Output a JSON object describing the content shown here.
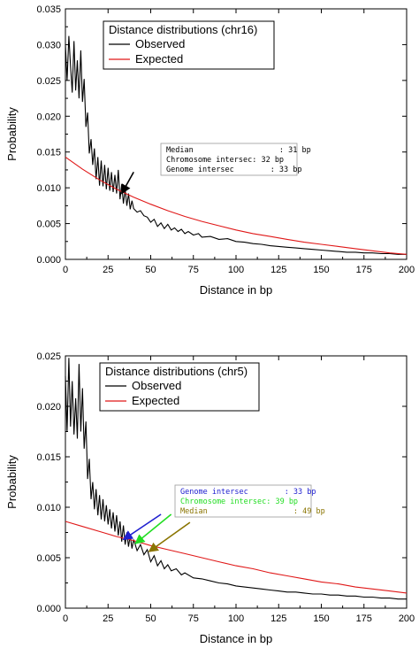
{
  "colors": {
    "observed": "#000000",
    "expected": "#e01818",
    "genome_arrow": "#2020d0",
    "chromosome_arrow": "#22dd22",
    "median_arrow": "#8a7400"
  },
  "chart_data": [
    {
      "type": "line",
      "legend_title": "Distance distributions (chr16)",
      "legend_position": "top-right",
      "xlabel": "Distance in bp",
      "ylabel": "Probability",
      "xlim": [
        0,
        200
      ],
      "ylim": [
        0,
        0.035
      ],
      "x_ticks": [
        "0",
        "25",
        "50",
        "75",
        "100",
        "125",
        "150",
        "175",
        "200"
      ],
      "y_ticks": [
        "0.000",
        "0.005",
        "0.010",
        "0.015",
        "0.020",
        "0.025",
        "0.030",
        "0.035"
      ],
      "series": [
        {
          "name": "Observed",
          "color": "#000000",
          "points": [
            [
              0,
              0.03
            ],
            [
              1,
              0.025
            ],
            [
              2,
              0.0312
            ],
            [
              3,
              0.027
            ],
            [
              4,
              0.0233
            ],
            [
              5,
              0.0305
            ],
            [
              6,
              0.0236
            ],
            [
              7,
              0.0278
            ],
            [
              8,
              0.0225
            ],
            [
              9,
              0.0292
            ],
            [
              10,
              0.022
            ],
            [
              11,
              0.0252
            ],
            [
              12,
              0.0185
            ],
            [
              13,
              0.0205
            ],
            [
              14,
              0.0148
            ],
            [
              15,
              0.0168
            ],
            [
              16,
              0.0132
            ],
            [
              17,
              0.0155
            ],
            [
              18,
              0.0112
            ],
            [
              19,
              0.0143
            ],
            [
              20,
              0.0103
            ],
            [
              21,
              0.0138
            ],
            [
              22,
              0.0102
            ],
            [
              23,
              0.0132
            ],
            [
              24,
              0.0098
            ],
            [
              25,
              0.0128
            ],
            [
              26,
              0.0096
            ],
            [
              27,
              0.0122
            ],
            [
              28,
              0.0094
            ],
            [
              29,
              0.0118
            ],
            [
              30,
              0.0092
            ],
            [
              31,
              0.0125
            ],
            [
              32,
              0.0084
            ],
            [
              33,
              0.0105
            ],
            [
              34,
              0.0078
            ],
            [
              35,
              0.0098
            ],
            [
              36,
              0.0075
            ],
            [
              37,
              0.0092
            ],
            [
              38,
              0.007
            ],
            [
              39,
              0.0082
            ],
            [
              40,
              0.0071
            ],
            [
              42,
              0.0066
            ],
            [
              44,
              0.0068
            ],
            [
              46,
              0.0061
            ],
            [
              48,
              0.0059
            ],
            [
              50,
              0.0052
            ],
            [
              52,
              0.0056
            ],
            [
              54,
              0.0046
            ],
            [
              56,
              0.0051
            ],
            [
              58,
              0.0043
            ],
            [
              60,
              0.0049
            ],
            [
              62,
              0.0041
            ],
            [
              64,
              0.0044
            ],
            [
              66,
              0.0039
            ],
            [
              68,
              0.0042
            ],
            [
              70,
              0.0036
            ],
            [
              72,
              0.0039
            ],
            [
              75,
              0.0034
            ],
            [
              78,
              0.0036
            ],
            [
              80,
              0.0031
            ],
            [
              85,
              0.0032
            ],
            [
              90,
              0.0028
            ],
            [
              95,
              0.0029
            ],
            [
              100,
              0.0025
            ],
            [
              105,
              0.0024
            ],
            [
              110,
              0.0022
            ],
            [
              115,
              0.0021
            ],
            [
              120,
              0.0019
            ],
            [
              125,
              0.0018
            ],
            [
              130,
              0.0017
            ],
            [
              135,
              0.0016
            ],
            [
              140,
              0.0015
            ],
            [
              145,
              0.0014
            ],
            [
              150,
              0.0013
            ],
            [
              155,
              0.0012
            ],
            [
              160,
              0.0011
            ],
            [
              165,
              0.001
            ],
            [
              170,
              0.001
            ],
            [
              175,
              0.0009
            ],
            [
              180,
              0.0009
            ],
            [
              185,
              0.0008
            ],
            [
              190,
              0.0008
            ],
            [
              195,
              0.0007
            ],
            [
              200,
              0.0007
            ]
          ]
        },
        {
          "name": "Expected",
          "color": "#e01818",
          "points": [
            [
              0,
              0.0143
            ],
            [
              10,
              0.0126
            ],
            [
              20,
              0.0111
            ],
            [
              30,
              0.0098
            ],
            [
              40,
              0.0087
            ],
            [
              50,
              0.0077
            ],
            [
              60,
              0.0068
            ],
            [
              70,
              0.006
            ],
            [
              80,
              0.0053
            ],
            [
              90,
              0.0047
            ],
            [
              100,
              0.0041
            ],
            [
              110,
              0.0036
            ],
            [
              120,
              0.0032
            ],
            [
              130,
              0.0028
            ],
            [
              140,
              0.0024
            ],
            [
              150,
              0.0021
            ],
            [
              160,
              0.0018
            ],
            [
              170,
              0.0015
            ],
            [
              180,
              0.0012
            ],
            [
              190,
              0.0009
            ],
            [
              200,
              0.0007
            ]
          ]
        }
      ],
      "annotation": {
        "lines": [
          {
            "text": "Median                   : 31 bp",
            "color": "#000000"
          },
          {
            "text": "Chromosome intersec: 32 bp",
            "color": "#000000"
          },
          {
            "text": "Genome intersec        : 33 bp",
            "color": "#000000"
          }
        ],
        "arrows": [
          {
            "from": [
              40,
              0.0122
            ],
            "to": [
              33,
              0.0092
            ],
            "color": "#000000"
          }
        ]
      }
    },
    {
      "type": "line",
      "legend_title": "Distance distributions (chr5)",
      "legend_position": "top-left",
      "xlabel": "Distance in bp",
      "ylabel": "Probability",
      "xlim": [
        0,
        200
      ],
      "ylim": [
        0,
        0.025
      ],
      "x_ticks": [
        "0",
        "25",
        "50",
        "75",
        "100",
        "125",
        "150",
        "175",
        "200"
      ],
      "y_ticks": [
        "0.000",
        "0.005",
        "0.010",
        "0.015",
        "0.020",
        "0.025"
      ],
      "series": [
        {
          "name": "Observed",
          "color": "#000000",
          "points": [
            [
              0,
              0.023
            ],
            [
              1,
              0.0175
            ],
            [
              2,
              0.0248
            ],
            [
              3,
              0.018
            ],
            [
              4,
              0.0225
            ],
            [
              5,
              0.0172
            ],
            [
              6,
              0.0208
            ],
            [
              7,
              0.0168
            ],
            [
              8,
              0.0242
            ],
            [
              9,
              0.0175
            ],
            [
              10,
              0.0218
            ],
            [
              11,
              0.0158
            ],
            [
              12,
              0.0185
            ],
            [
              13,
              0.0128
            ],
            [
              14,
              0.0148
            ],
            [
              15,
              0.0108
            ],
            [
              16,
              0.0125
            ],
            [
              17,
              0.0098
            ],
            [
              18,
              0.0118
            ],
            [
              19,
              0.0092
            ],
            [
              20,
              0.0112
            ],
            [
              21,
              0.0088
            ],
            [
              22,
              0.0108
            ],
            [
              23,
              0.0086
            ],
            [
              24,
              0.0102
            ],
            [
              25,
              0.0083
            ],
            [
              26,
              0.0098
            ],
            [
              27,
              0.0079
            ],
            [
              28,
              0.0095
            ],
            [
              29,
              0.0076
            ],
            [
              30,
              0.0092
            ],
            [
              31,
              0.0072
            ],
            [
              32,
              0.0086
            ],
            [
              33,
              0.0066
            ],
            [
              34,
              0.0082
            ],
            [
              35,
              0.0063
            ],
            [
              36,
              0.0075
            ],
            [
              37,
              0.0061
            ],
            [
              38,
              0.0072
            ],
            [
              39,
              0.0059
            ],
            [
              40,
              0.0068
            ],
            [
              42,
              0.0057
            ],
            [
              44,
              0.0063
            ],
            [
              46,
              0.0053
            ],
            [
              48,
              0.0058
            ],
            [
              50,
              0.0046
            ],
            [
              52,
              0.0052
            ],
            [
              54,
              0.0042
            ],
            [
              56,
              0.0047
            ],
            [
              58,
              0.0039
            ],
            [
              60,
              0.0043
            ],
            [
              62,
              0.0037
            ],
            [
              65,
              0.0039
            ],
            [
              68,
              0.0033
            ],
            [
              70,
              0.0035
            ],
            [
              75,
              0.003
            ],
            [
              80,
              0.0029
            ],
            [
              85,
              0.0027
            ],
            [
              90,
              0.0025
            ],
            [
              95,
              0.0024
            ],
            [
              100,
              0.0022
            ],
            [
              105,
              0.0021
            ],
            [
              110,
              0.002
            ],
            [
              115,
              0.0019
            ],
            [
              120,
              0.0018
            ],
            [
              125,
              0.0017
            ],
            [
              130,
              0.0016
            ],
            [
              135,
              0.0016
            ],
            [
              140,
              0.0015
            ],
            [
              145,
              0.0014
            ],
            [
              150,
              0.0014
            ],
            [
              155,
              0.0013
            ],
            [
              160,
              0.0013
            ],
            [
              165,
              0.0012
            ],
            [
              170,
              0.0012
            ],
            [
              175,
              0.0011
            ],
            [
              180,
              0.0011
            ],
            [
              185,
              0.001
            ],
            [
              190,
              0.001
            ],
            [
              195,
              0.0009
            ],
            [
              200,
              0.0009
            ]
          ]
        },
        {
          "name": "Expected",
          "color": "#e01818",
          "points": [
            [
              0,
              0.0086
            ],
            [
              10,
              0.0081
            ],
            [
              20,
              0.0076
            ],
            [
              30,
              0.0071
            ],
            [
              40,
              0.0067
            ],
            [
              50,
              0.0062
            ],
            [
              60,
              0.0058
            ],
            [
              70,
              0.0054
            ],
            [
              80,
              0.005
            ],
            [
              90,
              0.0046
            ],
            [
              100,
              0.0042
            ],
            [
              110,
              0.0039
            ],
            [
              120,
              0.0035
            ],
            [
              130,
              0.0032
            ],
            [
              140,
              0.0029
            ],
            [
              150,
              0.0026
            ],
            [
              160,
              0.0024
            ],
            [
              170,
              0.0021
            ],
            [
              180,
              0.0019
            ],
            [
              190,
              0.0017
            ],
            [
              200,
              0.0015
            ]
          ]
        }
      ],
      "annotation": {
        "lines": [
          {
            "text": "Genome intersec        : 33 bp",
            "color": "#2020d0"
          },
          {
            "text": "Chromosome intersec: 39 bp",
            "color": "#22dd22"
          },
          {
            "text": "Median                   : 49 bp",
            "color": "#8a7400"
          }
        ],
        "arrows": [
          {
            "from": [
              56,
              0.0093
            ],
            "to": [
              34,
              0.0068
            ],
            "color": "#2020d0"
          },
          {
            "from": [
              62,
              0.0093
            ],
            "to": [
              41,
              0.0064
            ],
            "color": "#22dd22"
          },
          {
            "from": [
              73,
              0.0085
            ],
            "to": [
              49,
              0.0056
            ],
            "color": "#8a7400"
          }
        ]
      }
    }
  ]
}
